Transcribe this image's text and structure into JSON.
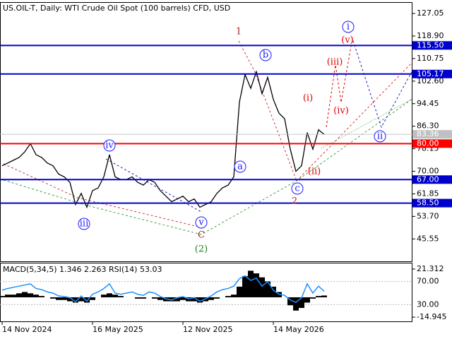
{
  "chart_data": [
    {
      "type": "line",
      "title": "US.OIL-T, Daily:  WTI Crude Oil Spot (100 barrels) CFD, USD",
      "categories": [
        "14 Nov 2024",
        null,
        null,
        null,
        null,
        null,
        null,
        null,
        null,
        null,
        null,
        null,
        null,
        null,
        null,
        null,
        "16 May 2025",
        null,
        null,
        null,
        null,
        null,
        null,
        null,
        null,
        null,
        null,
        null,
        null,
        null,
        null,
        null,
        "12 Nov 2025",
        null,
        null,
        null,
        null,
        null,
        null,
        null,
        null,
        null,
        null,
        null,
        null,
        null,
        null,
        null,
        "14 May 2026",
        null,
        null,
        null,
        null,
        null,
        null,
        null,
        null,
        null
      ],
      "series": [
        {
          "color": "#000000",
          "values": [
            72,
            73,
            74,
            75,
            77,
            80,
            76,
            75,
            73,
            72,
            69,
            68,
            66,
            58,
            62,
            57,
            63,
            64,
            68,
            76,
            68,
            67,
            67,
            68,
            66,
            65,
            67,
            66,
            63,
            61,
            59,
            60,
            61,
            59,
            60,
            57,
            58,
            59,
            62,
            64,
            65,
            68,
            95,
            105,
            100,
            106,
            98,
            104,
            96,
            91,
            89,
            78,
            70,
            72,
            84,
            78,
            85,
            83.36
          ]
        }
      ],
      "ylim": [
        37.2,
        130.9
      ],
      "yticks": [
        127.05,
        {
          "value": 118.9,
          "label": "118.90"
        },
        110.75,
        {
          "value": 102.6,
          "label": "102.60"
        },
        94.45,
        {
          "value": 86.3,
          "label": "86.30"
        },
        78.15,
        {
          "value": 70,
          "label": "70.00"
        },
        61.85,
        {
          "value": 53.7,
          "label": "53.70"
        },
        45.55
      ],
      "levels": [
        {
          "value": 115.5,
          "label": "115.50",
          "color": "#0000cc"
        },
        {
          "value": 105.17,
          "label": "105.17",
          "color": "#0000cc"
        },
        {
          "value": 80,
          "label": "80.00",
          "color": "#ff0000"
        },
        {
          "value": 67,
          "label": "67.00",
          "color": "#0000cc"
        },
        {
          "value": 58.5,
          "label": "58.50",
          "color": "#0000cc"
        }
      ],
      "current_price": {
        "value": 83.36,
        "color": "#c0c0c0"
      },
      "annotations": [
        {
          "text": "i",
          "color": "#1a1aff"
        },
        {
          "text": "(v)",
          "color": "#e00000"
        },
        {
          "text": "(iii)",
          "color": "#e00000"
        },
        {
          "text": "(iv)",
          "color": "#e00000"
        },
        {
          "text": "(i)",
          "color": "#e00000"
        },
        {
          "text": "(ii)",
          "color": "#e00000"
        },
        {
          "text": "ii",
          "color": "#1a1aff"
        },
        {
          "text": "1",
          "color": "#b02020"
        },
        {
          "text": "b",
          "color": "#1a1aff"
        },
        {
          "text": "a",
          "color": "#1a1aff"
        },
        {
          "text": "c",
          "color": "#1a1aff"
        },
        {
          "text": "2",
          "color": "#b02020"
        },
        {
          "text": "iv",
          "color": "#1a1aff"
        },
        {
          "text": "iii",
          "color": "#1a1aff"
        },
        {
          "text": "v",
          "color": "#1a1aff"
        },
        {
          "text": "C",
          "color": "#b02020"
        },
        {
          "text": "(2)",
          "color": "#208020"
        }
      ]
    },
    {
      "type": "macd",
      "title": "MACD(5,34,5) 1.346 2.263 RSI(14) 53.03",
      "series": [
        {
          "color": "#000000",
          "values": [
            1,
            2,
            2,
            3,
            4,
            3,
            2,
            1,
            0,
            -1,
            -2,
            -2,
            -3,
            -4,
            -3,
            -4,
            -2,
            0,
            2,
            3,
            2,
            1,
            0,
            0,
            -1,
            -1,
            0,
            -1,
            -2,
            -3,
            -3,
            -3,
            -2,
            -3,
            -3,
            -4,
            -3,
            -2,
            -1,
            0,
            1,
            2,
            8,
            16,
            20,
            18,
            15,
            12,
            8,
            4,
            0,
            -6,
            -10,
            -8,
            -4,
            -1,
            1,
            1.346
          ]
        },
        {
          "color": "#1e90ff",
          "axis": "y2",
          "values": [
            55,
            58,
            60,
            62,
            64,
            66,
            58,
            56,
            52,
            50,
            45,
            44,
            42,
            35,
            45,
            36,
            48,
            52,
            58,
            66,
            50,
            48,
            50,
            52,
            48,
            46,
            52,
            50,
            44,
            40,
            38,
            42,
            44,
            40,
            42,
            36,
            40,
            45,
            52,
            56,
            58,
            62,
            75,
            80,
            72,
            76,
            62,
            70,
            55,
            48,
            46,
            38,
            34,
            42,
            66,
            50,
            62,
            53.03
          ]
        }
      ],
      "ylim": [
        -18.1,
        25.5
      ],
      "yticks": [
        21.312,
        -14.945
      ],
      "y2lim": [
        0.9,
        101.5
      ],
      "y2ticks": [
        {
          "value": 70,
          "label": "70.00"
        },
        {
          "value": 30,
          "label": "30.00"
        }
      ]
    }
  ]
}
